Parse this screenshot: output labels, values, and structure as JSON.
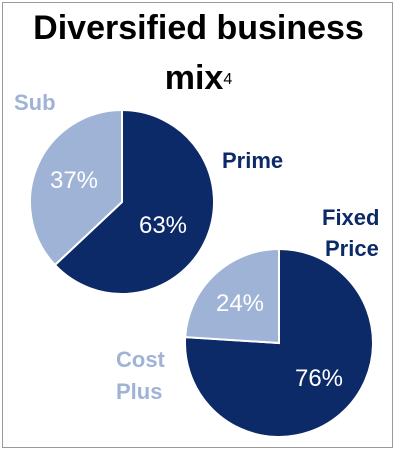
{
  "title": {
    "line1": "Diversified business",
    "line2": "mix",
    "footnote": "4"
  },
  "colors": {
    "dark": "#0c2a67",
    "light": "#9fb3d6",
    "border": "#ffffff"
  },
  "chart_data": [
    {
      "type": "pie",
      "slices": [
        {
          "label": "Prime",
          "value": 63,
          "value_label": "63%",
          "color": "#0c2a67"
        },
        {
          "label": "Sub",
          "value": 37,
          "value_label": "37%",
          "color": "#9fb3d6"
        }
      ]
    },
    {
      "type": "pie",
      "slices": [
        {
          "label_lines": [
            "Fixed",
            "Price"
          ],
          "value": 76,
          "value_label": "76%",
          "color": "#0c2a67"
        },
        {
          "label_lines": [
            "Cost",
            "Plus"
          ],
          "value": 24,
          "value_label": "24%",
          "color": "#9fb3d6"
        }
      ]
    }
  ]
}
